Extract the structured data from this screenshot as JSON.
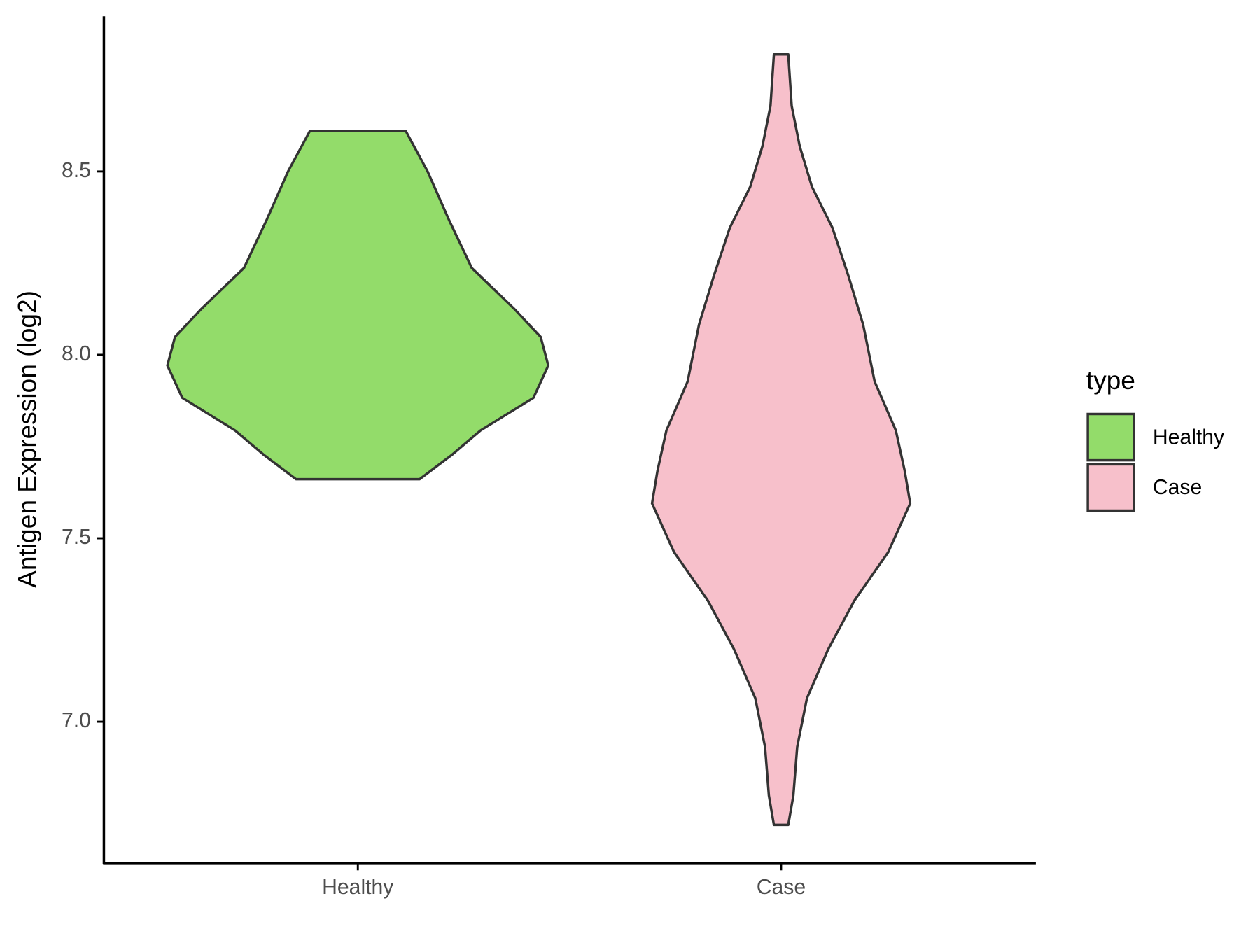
{
  "chart_data": {
    "type": "violin",
    "y_label": "Antigen Expression (log2)",
    "categories": [
      "Healthy",
      "Case"
    ],
    "legend_title": "type",
    "ylim": [
      6.615,
      8.923
    ],
    "yticks": [
      {
        "value": 7,
        "label": "7.0"
      },
      7.5,
      {
        "value": 8,
        "label": "8.0"
      },
      8.5
    ],
    "series": [
      {
        "name": "Healthy",
        "color": "#93dc6a",
        "y": [
          8.611,
          8.5,
          8.369,
          8.237,
          8.126,
          8.049,
          7.971,
          7.883,
          7.794,
          7.728,
          7.661
        ],
        "width": [
          0.113,
          0.165,
          0.215,
          0.269,
          0.369,
          0.432,
          0.45,
          0.415,
          0.29,
          0.223,
          0.146
        ]
      },
      {
        "name": "Case",
        "color": "#f7c0cb",
        "y": [
          8.819,
          8.679,
          8.569,
          8.458,
          8.347,
          8.215,
          8.082,
          7.927,
          7.794,
          7.684,
          7.595,
          7.462,
          7.33,
          7.197,
          7.064,
          6.931,
          6.799,
          6.719
        ],
        "width": [
          0.017,
          0.025,
          0.044,
          0.073,
          0.121,
          0.159,
          0.194,
          0.221,
          0.271,
          0.292,
          0.305,
          0.253,
          0.173,
          0.111,
          0.061,
          0.038,
          0.029,
          0.017
        ]
      }
    ]
  }
}
